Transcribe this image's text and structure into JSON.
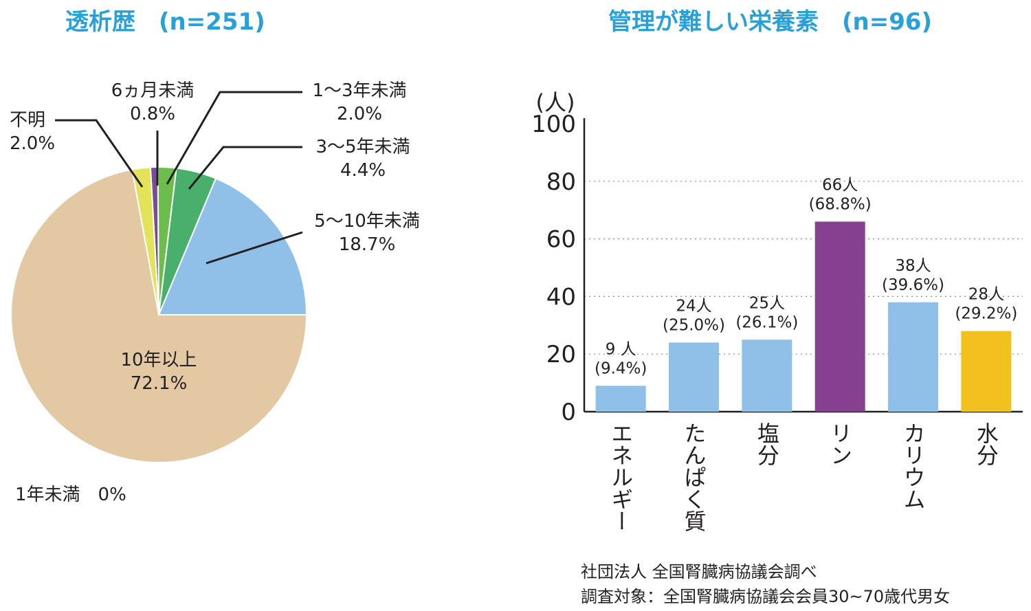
{
  "titles": {
    "pie": "透析歴　(n=251)",
    "bar": "管理が難しい栄養素　(n=96)"
  },
  "source": {
    "line1": "社団法人 全国腎臓病協議会調べ",
    "line2": "調査対象：全国腎臓病協議会会員30~70歳代男女"
  },
  "chart_data": [
    {
      "type": "pie",
      "title": "透析歴　(n=251)",
      "start": "3 o'clock, counterclockwise",
      "slices": [
        {
          "label": "5〜10年未満",
          "value": 18.7,
          "value_label": "18.7%",
          "color": "#90c0e8"
        },
        {
          "label": "3〜5年未満",
          "value": 4.4,
          "value_label": "4.4%",
          "color": "#48b06a"
        },
        {
          "label": "1〜3年未満",
          "value": 2.0,
          "value_label": "2.0%",
          "color": "#6cbd4c"
        },
        {
          "label": "6ヵ月未満",
          "value": 0.8,
          "value_label": "0.8%",
          "color": "#7a4c96"
        },
        {
          "label": "不明",
          "value": 2.0,
          "value_label": "2.0%",
          "color": "#e3e35a"
        },
        {
          "label": "10年以上",
          "value": 72.1,
          "value_label": "72.1%",
          "color": "#e3c9a3"
        }
      ],
      "zero_note": "1年未満　0%"
    },
    {
      "type": "bar",
      "title": "管理が難しい栄養素　(n=96)",
      "ylabel": "(人)",
      "ylim": [
        0,
        100
      ],
      "yticks": [
        0,
        20,
        40,
        60,
        80,
        100
      ],
      "grid": true,
      "categories": [
        "エネルギー",
        "たんぱく質",
        "塩分",
        "リン",
        "カリウム",
        "水分"
      ],
      "values": [
        9,
        24,
        25,
        66,
        38,
        28
      ],
      "count_labels": [
        "9 人",
        "24人",
        "25人",
        "66人",
        "38人",
        "28人"
      ],
      "pct_labels": [
        "(9.4%)",
        "(25.0%)",
        "(26.1%)",
        "(68.8%)",
        "(39.6%)",
        "(29.2%)"
      ],
      "colors": [
        "#8ec0e8",
        "#8ec0e8",
        "#8ec0e8",
        "#84418e",
        "#8ec0e8",
        "#f2c11e"
      ]
    }
  ]
}
